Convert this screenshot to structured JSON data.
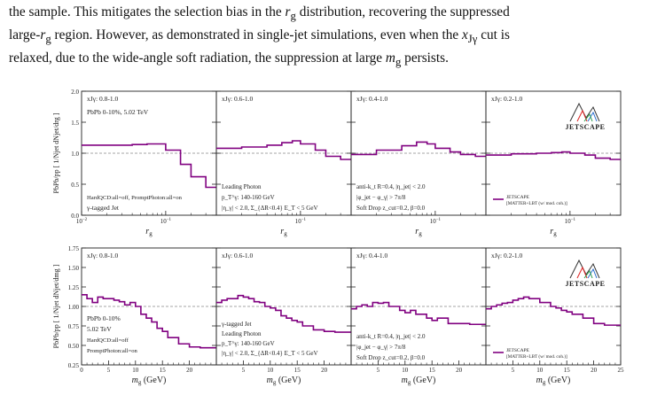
{
  "paragraph": {
    "lines": [
      "the sample. This mitigates the selection bias in the r_g distribution, recovering the suppressed",
      "large-r_g region. However, as demonstrated in single-jet simulations, even when the x_Jγ cut is",
      "relaxed, due to the wide-angle soft radiation, the suppression at large m_g persists."
    ]
  },
  "figure": {
    "ylabel_top": [
      "PbPb",
      "pp",
      "[ 1/N",
      "jet",
      " dN",
      "jet",
      "/dr",
      "g",
      " ]"
    ],
    "ylabel_bottom": [
      "PbPb",
      "pp",
      "[ 1/N",
      "jet",
      " dN",
      "jet",
      "/dm",
      "g",
      " ]"
    ],
    "logo_text": "JETSCAPE",
    "legend_label_line1": "JETSCAPE",
    "legend_label_line2": "[MATTER+LBT (w/ mod. coh.)]",
    "legend_color": "#800080"
  },
  "chart_data": [
    {
      "type": "line",
      "step": true,
      "observable": "r_g",
      "xlabel": "r_g",
      "ylabel": "PbPb/pp [1/N_jet dN_jet/dr_g]",
      "xscale": "log",
      "xlim": [
        0.01,
        0.4
      ],
      "ylim": [
        0.0,
        2.0
      ],
      "yticks": [
        "0.0",
        "0.5",
        "1.0",
        "1.5",
        "2.0"
      ],
      "xticks": [
        "10^-2",
        "10^-1"
      ],
      "reference_line": 1.0,
      "series_color": "#800080",
      "panels": [
        {
          "label": "x_Jγ: 0.8-1.0",
          "annotations": [
            "PbPb 0-10%, 5.02 TeV",
            "HardQCD:all=off, PromptPhoton:all=on",
            "γ-tagged Jet"
          ],
          "edges": [
            0.01,
            0.02,
            0.04,
            0.06,
            0.08,
            0.1,
            0.15,
            0.2,
            0.3,
            0.4
          ],
          "values": [
            1.13,
            1.13,
            1.14,
            1.15,
            1.15,
            1.05,
            0.82,
            0.62,
            0.45
          ]
        },
        {
          "label": "x_Jγ: 0.6-1.0",
          "annotations": [
            "Leading Photon",
            "p_T^γ: 140-160 GeV",
            "|η_γ| < 2.0, Σ_{ΔR<0.4} E_T < 5 GeV"
          ],
          "edges": [
            0.01,
            0.02,
            0.04,
            0.06,
            0.08,
            0.1,
            0.15,
            0.2,
            0.3,
            0.4
          ],
          "values": [
            1.08,
            1.1,
            1.13,
            1.17,
            1.2,
            1.15,
            1.05,
            0.95,
            0.9
          ]
        },
        {
          "label": "x_Jγ: 0.4-1.0",
          "annotations": [
            "anti-k_t R=0.4, |η_jet| < 2.0",
            "|φ_jet − φ_γ| > 7π/8",
            "Soft Drop z_cut=0.2, β=0.0"
          ],
          "edges": [
            0.01,
            0.02,
            0.04,
            0.06,
            0.08,
            0.1,
            0.15,
            0.2,
            0.3,
            0.4
          ],
          "values": [
            0.98,
            1.05,
            1.12,
            1.18,
            1.15,
            1.08,
            1.02,
            0.98,
            0.95
          ]
        },
        {
          "label": "x_Jγ: 0.2-1.0",
          "annotations": [],
          "edges": [
            0.01,
            0.02,
            0.04,
            0.06,
            0.08,
            0.1,
            0.15,
            0.2,
            0.3,
            0.4
          ],
          "values": [
            0.97,
            0.99,
            1.0,
            1.01,
            1.02,
            1.0,
            0.97,
            0.92,
            0.9
          ]
        }
      ]
    },
    {
      "type": "line",
      "step": true,
      "observable": "m_g",
      "xlabel": "m_g (GeV)",
      "ylabel": "PbPb/pp [1/N_jet dN_jet/dm_g]",
      "xlim": [
        0,
        25
      ],
      "ylim": [
        0.25,
        1.75
      ],
      "yticks": [
        "0.25",
        "0.50",
        "0.75",
        "1.00",
        "1.25",
        "1.50",
        "1.75"
      ],
      "xticks": [
        "0",
        "5",
        "10",
        "15",
        "20",
        "25"
      ],
      "reference_line": 1.0,
      "series_color": "#800080",
      "panels": [
        {
          "label": "x_Jγ: 0.8-1.0",
          "annotations": [
            "PbPb 0-10%",
            "5.02 TeV",
            "HardQCD:all=off",
            "PromptPhoton:all=on"
          ],
          "edges": [
            0,
            1,
            2,
            3,
            4,
            5,
            6,
            7,
            8,
            9,
            10,
            11,
            12,
            13,
            14,
            15,
            16,
            18,
            20,
            22,
            25
          ],
          "values": [
            1.15,
            1.1,
            1.05,
            1.12,
            1.1,
            1.1,
            1.08,
            1.06,
            1.02,
            1.05,
            1.0,
            0.9,
            0.85,
            0.8,
            0.72,
            0.68,
            0.6,
            0.52,
            0.48,
            0.47
          ]
        },
        {
          "label": "x_Jγ: 0.6-1.0",
          "annotations": [
            "γ-tagged Jet",
            "Leading Photon",
            "p_T^γ: 140-160 GeV",
            "|η_γ| < 2.0, Σ_{ΔR<0.4} E_T < 5 GeV"
          ],
          "edges": [
            0,
            1,
            2,
            3,
            4,
            5,
            6,
            7,
            8,
            9,
            10,
            11,
            12,
            13,
            14,
            15,
            16,
            18,
            20,
            22,
            25
          ],
          "values": [
            1.05,
            1.08,
            1.1,
            1.1,
            1.14,
            1.12,
            1.1,
            1.06,
            1.05,
            1.0,
            0.98,
            0.95,
            0.88,
            0.85,
            0.82,
            0.8,
            0.75,
            0.7,
            0.68,
            0.67
          ]
        },
        {
          "label": "x_Jγ: 0.4-1.0",
          "annotations": [
            "anti-k_t R=0.4, |η_jet| < 2.0",
            "|φ_jet − φ_γ| > 7π/8",
            "Soft Drop z_cut=0.2, β=0.0"
          ],
          "edges": [
            0,
            1,
            2,
            3,
            4,
            5,
            6,
            7,
            8,
            9,
            10,
            11,
            12,
            13,
            14,
            15,
            16,
            18,
            20,
            22,
            25
          ],
          "values": [
            0.97,
            1.0,
            1.02,
            1.0,
            1.05,
            1.04,
            1.05,
            1.0,
            1.0,
            0.95,
            0.92,
            0.95,
            0.9,
            0.9,
            0.85,
            0.82,
            0.85,
            0.78,
            0.78,
            0.77
          ]
        },
        {
          "label": "x_Jγ: 0.2-1.0",
          "annotations": [],
          "edges": [
            0,
            1,
            2,
            3,
            4,
            5,
            6,
            7,
            8,
            9,
            10,
            11,
            12,
            13,
            14,
            15,
            16,
            18,
            20,
            22,
            25
          ],
          "values": [
            0.97,
            1.0,
            1.02,
            1.04,
            1.05,
            1.08,
            1.1,
            1.12,
            1.1,
            1.1,
            1.05,
            1.05,
            1.0,
            0.98,
            0.95,
            0.93,
            0.9,
            0.85,
            0.78,
            0.76
          ]
        }
      ]
    }
  ]
}
